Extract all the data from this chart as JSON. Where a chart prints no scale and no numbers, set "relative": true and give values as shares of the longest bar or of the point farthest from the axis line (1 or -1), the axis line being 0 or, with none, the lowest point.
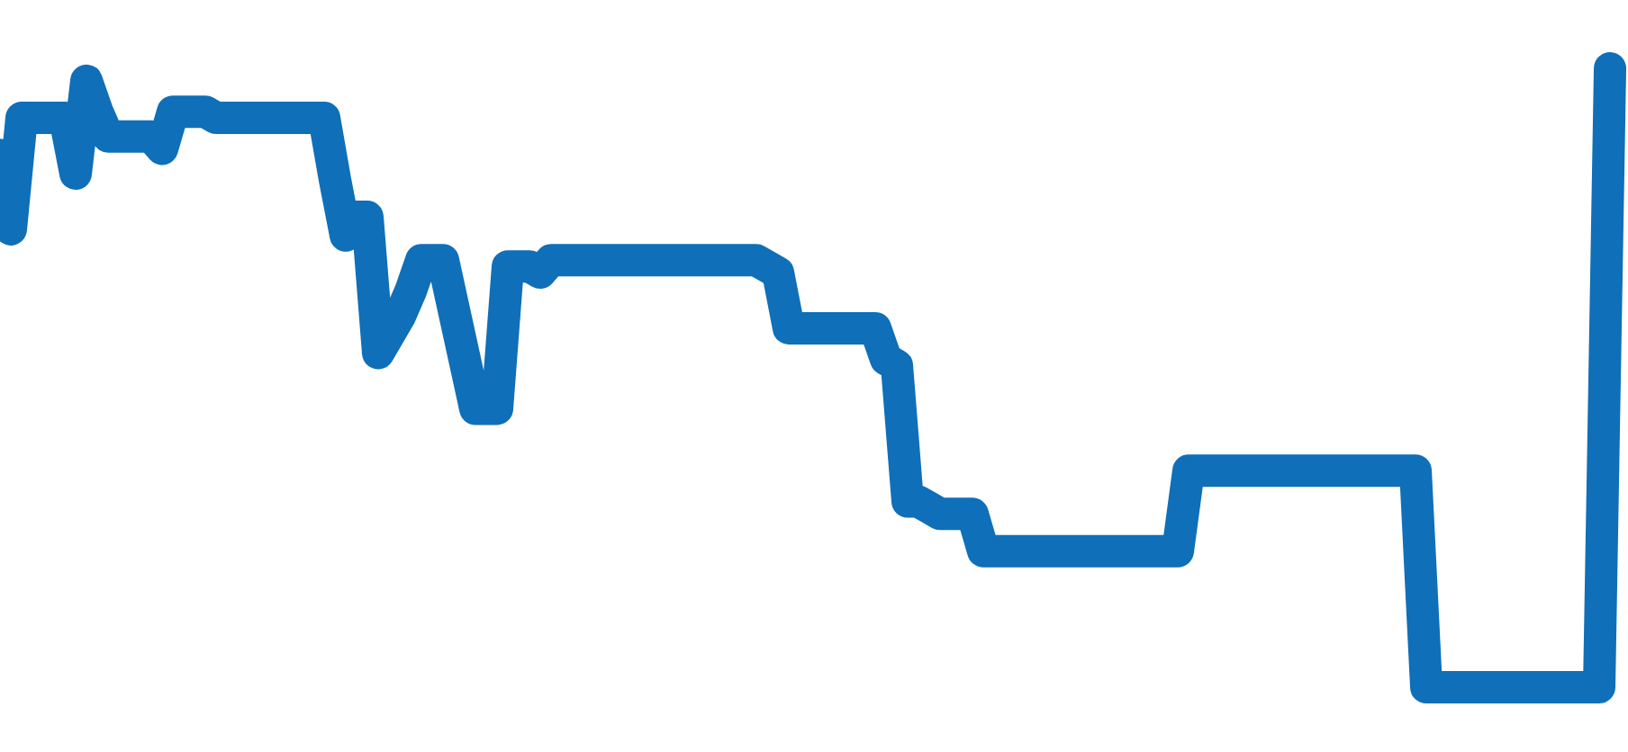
{
  "chart_data": {
    "type": "line",
    "relative": true,
    "line_style": "solid",
    "categories": [
      null,
      null,
      null,
      null,
      null,
      null,
      null,
      null,
      null,
      null,
      null,
      null,
      null,
      null,
      null,
      null,
      null,
      null,
      null,
      null,
      null,
      null,
      null,
      null,
      null,
      null,
      null,
      null,
      null,
      null,
      null,
      null,
      null,
      null,
      null,
      null,
      null,
      null,
      null,
      null,
      null,
      null,
      null,
      null,
      null,
      null,
      null,
      null,
      null,
      null,
      null,
      null,
      null,
      null,
      null,
      null,
      null,
      null,
      null,
      null,
      null,
      null,
      null,
      null,
      null,
      null,
      null,
      null,
      null,
      null,
      null,
      null,
      null,
      null,
      null,
      null,
      null,
      null,
      null,
      null,
      null,
      null,
      null,
      null,
      null,
      null,
      null,
      null,
      null,
      null,
      null,
      null,
      null,
      null,
      null,
      null,
      null,
      null,
      null,
      null,
      null,
      null,
      null,
      null,
      null,
      null,
      null,
      null,
      null,
      null,
      null,
      null,
      null,
      null,
      null,
      null,
      null,
      null,
      null,
      null,
      null,
      null,
      null,
      null,
      null,
      null,
      null,
      null,
      null,
      null,
      null,
      null,
      null,
      null,
      null,
      null,
      null,
      null,
      null,
      null,
      null,
      null,
      null,
      null,
      null,
      null,
      null,
      null,
      null,
      null
    ],
    "series": [
      {
        "color": "#0f6fb8",
        "values": [
          0.86,
          0.74,
          0.92,
          0.92,
          0.92,
          0.92,
          0.92,
          0.83,
          0.98,
          0.93,
          0.89,
          0.89,
          0.89,
          0.89,
          0.89,
          0.87,
          0.93,
          0.93,
          0.93,
          0.93,
          0.92,
          0.92,
          0.92,
          0.92,
          0.92,
          0.92,
          0.92,
          0.92,
          0.92,
          0.92,
          0.92,
          0.82,
          0.73,
          0.76,
          0.76,
          0.54,
          0.57,
          0.6,
          0.64,
          0.69,
          0.69,
          0.69,
          0.61,
          0.53,
          0.45,
          0.45,
          0.45,
          0.68,
          0.68,
          0.68,
          0.67,
          0.69,
          0.69,
          0.69,
          0.69,
          0.69,
          0.69,
          0.69,
          0.69,
          0.69,
          0.69,
          0.69,
          0.69,
          0.69,
          0.69,
          0.69,
          0.69,
          0.69,
          0.69,
          0.69,
          0.69,
          0.68,
          0.67,
          0.58,
          0.58,
          0.58,
          0.58,
          0.58,
          0.58,
          0.58,
          0.58,
          0.58,
          0.53,
          0.52,
          0.3,
          0.3,
          0.29,
          0.28,
          0.28,
          0.28,
          0.28,
          0.22,
          0.22,
          0.22,
          0.22,
          0.22,
          0.22,
          0.22,
          0.22,
          0.22,
          0.22,
          0.22,
          0.22,
          0.22,
          0.22,
          0.22,
          0.22,
          0.22,
          0.22,
          0.22,
          0.35,
          0.35,
          0.35,
          0.35,
          0.35,
          0.35,
          0.35,
          0.35,
          0.35,
          0.35,
          0.35,
          0.35,
          0.35,
          0.35,
          0.35,
          0.35,
          0.35,
          0.35,
          0.35,
          0.35,
          0.35,
          0.35,
          0,
          0,
          0,
          0,
          0,
          0,
          0,
          0,
          0,
          0,
          0,
          0,
          0,
          0,
          0,
          0,
          0,
          1
        ]
      }
    ]
  }
}
